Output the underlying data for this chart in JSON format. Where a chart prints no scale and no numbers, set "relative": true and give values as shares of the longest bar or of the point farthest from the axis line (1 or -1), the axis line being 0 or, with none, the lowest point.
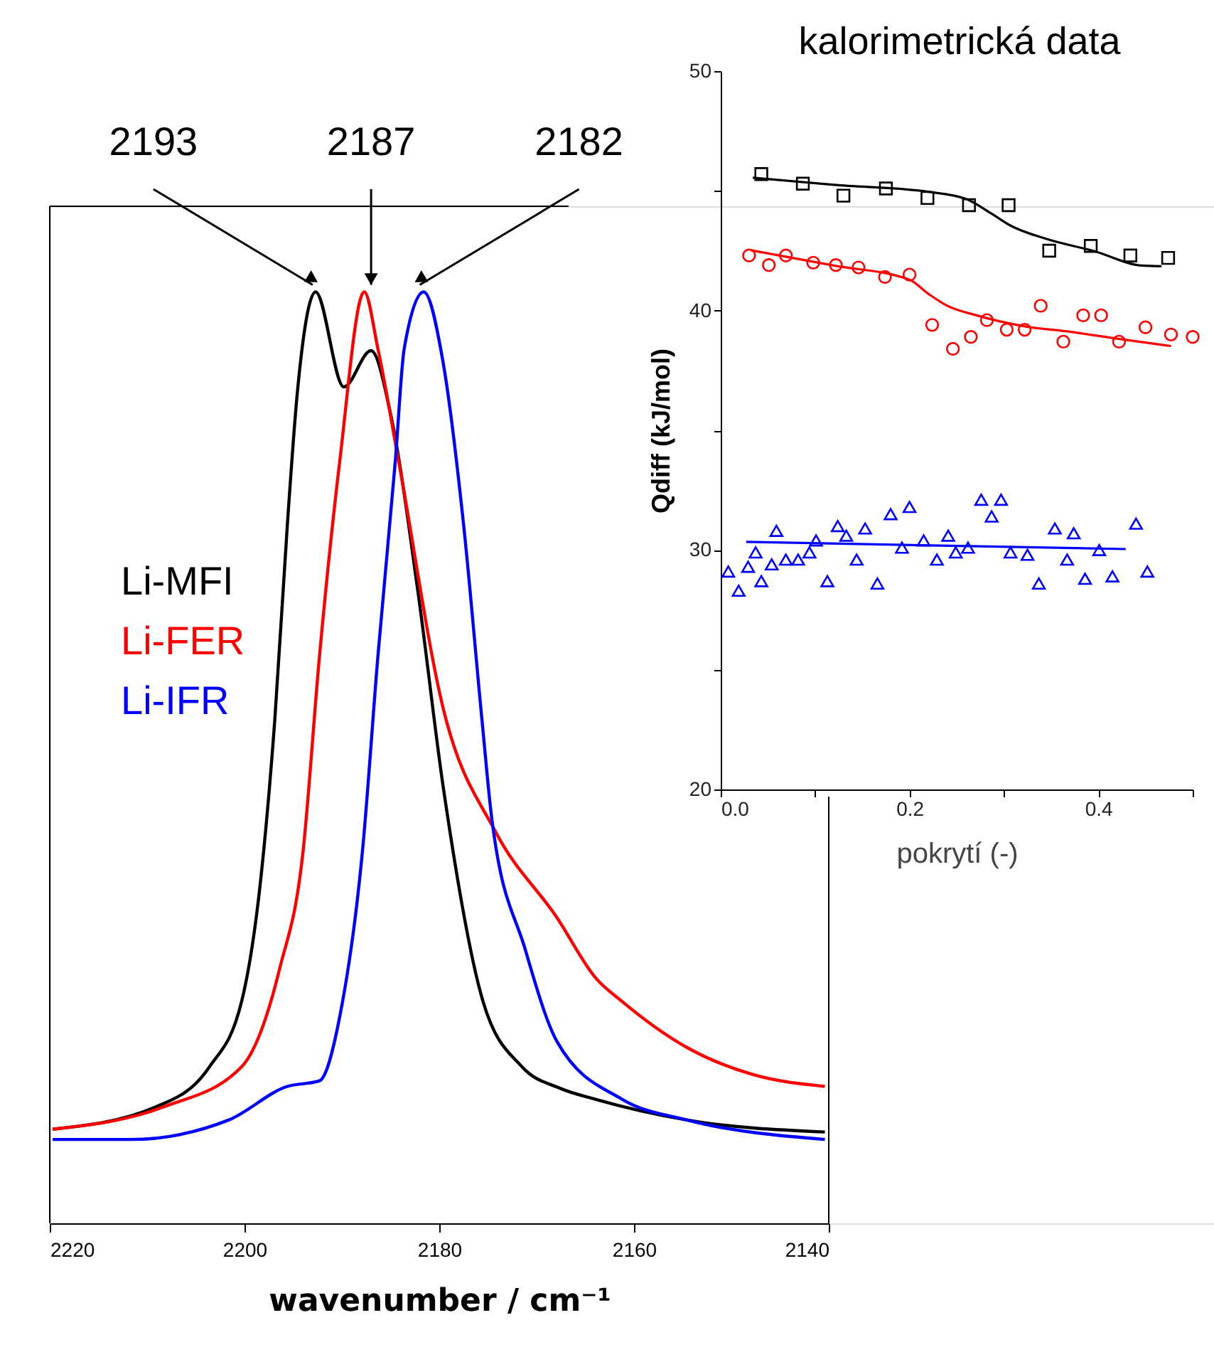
{
  "chart_data": [
    {
      "type": "line",
      "relative": true,
      "xlabel": "wavenumber / cm⁻¹",
      "xlim": [
        2220,
        2140
      ],
      "xticks": [
        2220,
        2200,
        2180,
        2160,
        2140
      ],
      "legend": "left",
      "grid": false,
      "line_style": "solid",
      "annotations": [
        {
          "text": "2193",
          "x": 2193,
          "y": 1.0
        },
        {
          "text": "2187",
          "x": 2187,
          "y": 1.0
        },
        {
          "text": "2182",
          "x": 2182,
          "y": 1.0
        }
      ],
      "series": [
        {
          "name": "Li-MFI",
          "color": "#000000",
          "x": [
            2219.7,
            2209.1,
            2203.6,
            2200.3,
            2198.4,
            2196.9,
            2195.6,
            2194.6,
            2192.7,
            2189.8,
            2187.0,
            2185.0,
            2182.2,
            2179.6,
            2175.5,
            2171.5,
            2167.6,
            2163.9,
            2154.6,
            2140.4
          ],
          "values": [
            0.101,
            0.125,
            0.168,
            0.238,
            0.363,
            0.539,
            0.75,
            0.889,
            1.0,
            0.898,
            0.937,
            0.869,
            0.679,
            0.469,
            0.238,
            0.168,
            0.145,
            0.133,
            0.111,
            0.098
          ]
        },
        {
          "name": "Li-FER",
          "color": "#ff0000",
          "x": [
            2219.7,
            2208.3,
            2200.3,
            2196.4,
            2194.0,
            2192.3,
            2190.2,
            2187.7,
            2186.3,
            2184.2,
            2179.6,
            2174.2,
            2167.9,
            2163.9,
            2161.2,
            2154.6,
            2147.9,
            2140.4
          ],
          "values": [
            0.101,
            0.125,
            0.168,
            0.273,
            0.398,
            0.609,
            0.82,
            1.0,
            0.939,
            0.82,
            0.553,
            0.42,
            0.328,
            0.263,
            0.238,
            0.189,
            0.16,
            0.147
          ]
        },
        {
          "name": "Li-IFR",
          "color": "#0000ff",
          "x": [
            2219.7,
            2211.7,
            2201.6,
            2195.6,
            2192.3,
            2190.2,
            2187.9,
            2186.3,
            2184.5,
            2183.6,
            2181.6,
            2179.6,
            2177.5,
            2175.6,
            2174.6,
            2171.2,
            2167.9,
            2161.2,
            2154.6,
            2140.4
          ],
          "values": [
            0.09,
            0.09,
            0.111,
            0.147,
            0.153,
            0.223,
            0.398,
            0.609,
            0.82,
            0.939,
            1.0,
            0.924,
            0.75,
            0.539,
            0.434,
            0.295,
            0.195,
            0.133,
            0.111,
            0.09
          ]
        }
      ]
    },
    {
      "type": "scatter",
      "title": "kalorimetrická data",
      "xlabel": "pokrytí (-)",
      "ylabel": "Qdiff (kJ/mol)",
      "xlim": [
        0,
        0.5
      ],
      "ylim": [
        20,
        50
      ],
      "grid": false,
      "xticks": [
        {
          "value": 0,
          "label": "0.0"
        },
        {
          "value": 0.1,
          "label": null
        },
        0.2,
        {
          "value": 0.3,
          "label": null
        },
        0.4,
        {
          "value": 0.5,
          "label": null
        }
      ],
      "yticks": [
        20,
        {
          "value": 25,
          "label": null
        },
        30,
        {
          "value": 35,
          "label": null
        },
        40,
        {
          "value": 45,
          "label": null
        },
        50
      ],
      "series": [
        {
          "color": "#000000",
          "marker": "square",
          "x": [
            0.043,
            0.087,
            0.13,
            0.175,
            0.219,
            0.263,
            0.305,
            0.348,
            0.392,
            0.434,
            0.474
          ],
          "values": [
            45.7,
            45.3,
            44.8,
            45.1,
            44.7,
            44.4,
            44.4,
            42.5,
            42.7,
            42.3,
            42.2
          ]
        },
        {
          "color": "#ff0000",
          "marker": "circle",
          "x": [
            0.03,
            0.051,
            0.069,
            0.098,
            0.122,
            0.146,
            0.174,
            0.2,
            0.224,
            0.246,
            0.265,
            0.282,
            0.303,
            0.322,
            0.339,
            0.363,
            0.384,
            0.403,
            0.422,
            0.45,
            0.477,
            0.5
          ],
          "values": [
            42.3,
            41.9,
            42.3,
            42.0,
            41.9,
            41.8,
            41.4,
            41.5,
            39.4,
            38.4,
            38.9,
            39.6,
            39.2,
            39.2,
            40.2,
            38.7,
            39.8,
            39.8,
            38.7,
            39.3,
            39.0,
            38.9
          ]
        },
        {
          "color": "#0000ff",
          "marker": "triangle",
          "x": [
            0.008,
            0.019,
            0.029,
            0.037,
            0.043,
            0.054,
            0.059,
            0.069,
            0.082,
            0.094,
            0.101,
            0.113,
            0.124,
            0.133,
            0.144,
            0.153,
            0.166,
            0.18,
            0.192,
            0.2,
            0.215,
            0.229,
            0.241,
            0.249,
            0.262,
            0.276,
            0.287,
            0.297,
            0.307,
            0.325,
            0.337,
            0.354,
            0.367,
            0.374,
            0.386,
            0.401,
            0.415,
            0.44,
            0.452
          ],
          "values": [
            29.1,
            28.3,
            29.3,
            29.9,
            28.7,
            29.4,
            30.8,
            29.6,
            29.6,
            29.9,
            30.4,
            28.7,
            31.0,
            30.6,
            29.6,
            30.9,
            28.6,
            31.5,
            30.1,
            31.8,
            30.4,
            29.6,
            30.6,
            29.9,
            30.1,
            32.1,
            31.4,
            32.1,
            29.9,
            29.8,
            28.6,
            30.9,
            29.6,
            30.7,
            28.8,
            30.0,
            28.9,
            31.1,
            29.1
          ]
        },
        {
          "type": "line",
          "color": "#000000",
          "marker": "none",
          "x": [
            0.034,
            0.12,
            0.22,
            0.26,
            0.286,
            0.306,
            0.346,
            0.396,
            0.446,
            0.467
          ],
          "values": [
            45.55,
            45.25,
            44.96,
            44.66,
            44.07,
            43.57,
            42.98,
            42.48,
            41.88,
            41.85
          ]
        },
        {
          "type": "line",
          "color": "#ff0000",
          "marker": "none",
          "x": [
            0.032,
            0.12,
            0.2,
            0.22,
            0.24,
            0.271,
            0.321,
            0.371,
            0.421,
            0.477
          ],
          "values": [
            42.52,
            41.88,
            41.29,
            40.7,
            40.2,
            39.8,
            39.35,
            39.11,
            38.82,
            38.52
          ]
        },
        {
          "type": "line",
          "color": "#0000ff",
          "marker": "none",
          "x": [
            0.027,
            0.429
          ],
          "values": [
            30.34,
            30.04
          ]
        }
      ]
    }
  ]
}
